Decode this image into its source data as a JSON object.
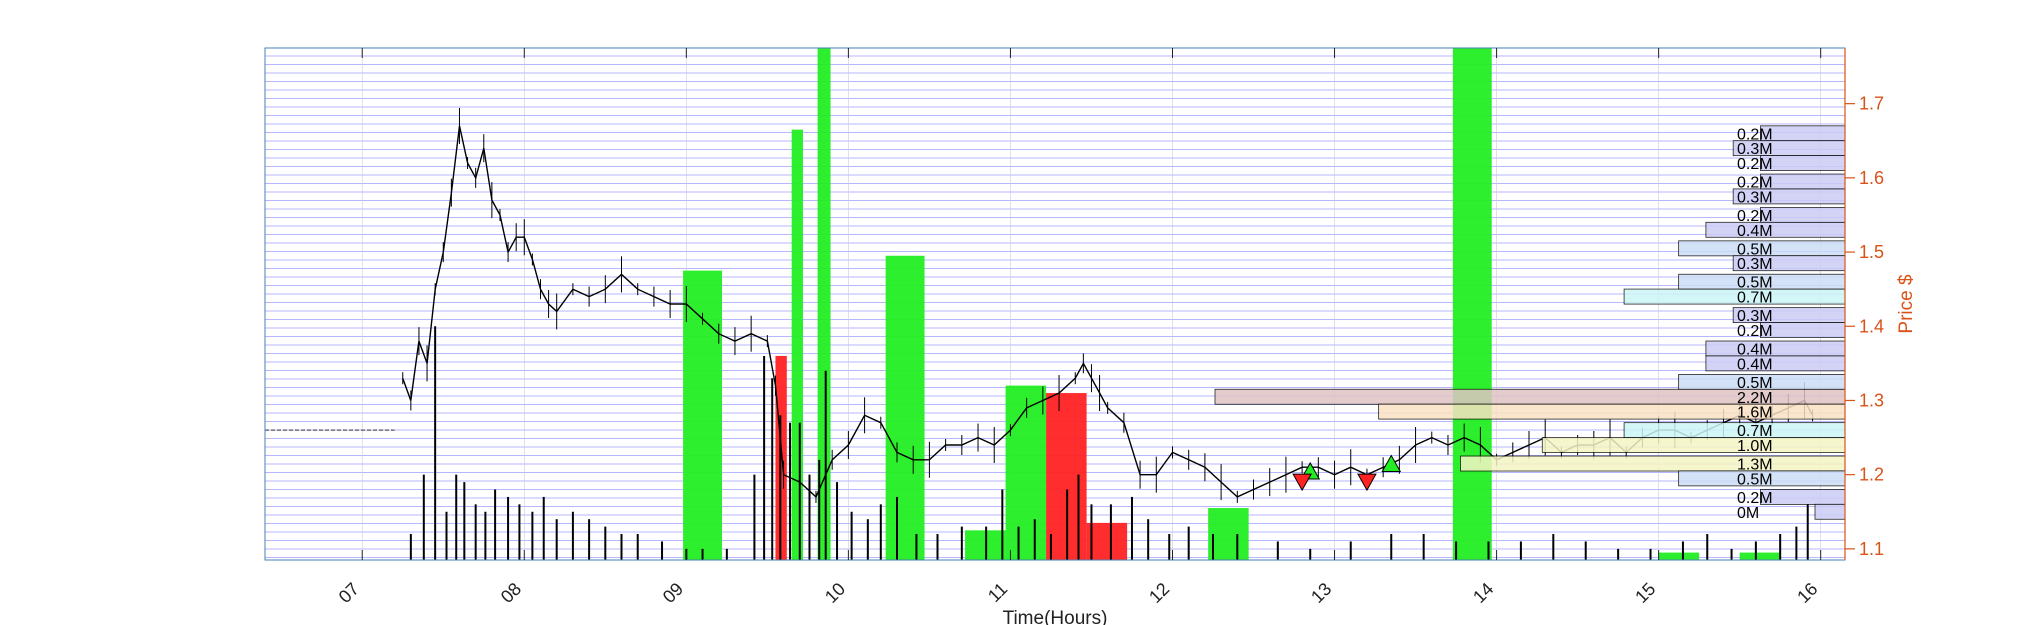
{
  "chart_data": {
    "type": "bar",
    "title": "",
    "xlabel": "Time(Hours)",
    "ylabel": "Price $",
    "xlim": [
      6.4,
      16.15
    ],
    "ylim": [
      1.085,
      1.775
    ],
    "x_ticks": [
      "07",
      "08",
      "09",
      "10",
      "11",
      "12",
      "13",
      "14",
      "15",
      "16"
    ],
    "x_tick_values": [
      7,
      8,
      9,
      10,
      11,
      12,
      13,
      14,
      15,
      16
    ],
    "y_ticks": [
      "1.1",
      "1.2",
      "1.3",
      "1.4",
      "1.5",
      "1.6",
      "1.7"
    ],
    "y_tick_values": [
      1.1,
      1.2,
      1.3,
      1.4,
      1.5,
      1.6,
      1.7
    ],
    "grid": "horizontal price levels",
    "colors": {
      "up": "#22ee22",
      "down": "#ff2222",
      "price": "#000000",
      "axis_right": "#d95319",
      "grid": "#4040ff"
    },
    "premarket_price": {
      "x_start": 6.4,
      "x_end": 7.2,
      "y": 1.26
    },
    "price_series": {
      "name": "Price",
      "x": [
        7.25,
        7.3,
        7.35,
        7.4,
        7.45,
        7.5,
        7.55,
        7.6,
        7.65,
        7.7,
        7.75,
        7.8,
        7.85,
        7.9,
        7.95,
        8.0,
        8.05,
        8.1,
        8.15,
        8.2,
        8.3,
        8.4,
        8.5,
        8.6,
        8.7,
        8.8,
        8.9,
        9.0,
        9.1,
        9.2,
        9.3,
        9.4,
        9.5,
        9.55,
        9.6,
        9.7,
        9.8,
        9.9,
        10.0,
        10.1,
        10.2,
        10.3,
        10.4,
        10.5,
        10.6,
        10.7,
        10.8,
        10.9,
        11.0,
        11.1,
        11.2,
        11.3,
        11.4,
        11.45,
        11.5,
        11.55,
        11.6,
        11.7,
        11.8,
        11.9,
        12.0,
        12.1,
        12.2,
        12.3,
        12.4,
        12.5,
        12.6,
        12.7,
        12.8,
        12.9,
        13.0,
        13.1,
        13.2,
        13.3,
        13.4,
        13.5,
        13.6,
        13.7,
        13.8,
        13.9,
        14.0,
        14.1,
        14.2,
        14.3,
        14.4,
        14.5,
        14.6,
        14.7,
        14.8,
        14.9,
        15.0,
        15.1,
        15.2,
        15.3,
        15.4,
        15.5,
        15.6,
        15.7,
        15.8,
        15.9,
        15.95
      ],
      "values": [
        1.33,
        1.3,
        1.38,
        1.35,
        1.45,
        1.5,
        1.58,
        1.67,
        1.62,
        1.6,
        1.64,
        1.57,
        1.55,
        1.5,
        1.52,
        1.52,
        1.49,
        1.45,
        1.43,
        1.42,
        1.45,
        1.44,
        1.45,
        1.47,
        1.45,
        1.44,
        1.43,
        1.43,
        1.41,
        1.39,
        1.38,
        1.39,
        1.38,
        1.32,
        1.2,
        1.19,
        1.17,
        1.22,
        1.24,
        1.28,
        1.27,
        1.23,
        1.22,
        1.22,
        1.24,
        1.24,
        1.25,
        1.24,
        1.26,
        1.29,
        1.3,
        1.31,
        1.33,
        1.35,
        1.33,
        1.31,
        1.29,
        1.27,
        1.2,
        1.2,
        1.23,
        1.22,
        1.21,
        1.19,
        1.17,
        1.18,
        1.19,
        1.2,
        1.21,
        1.21,
        1.2,
        1.21,
        1.2,
        1.21,
        1.22,
        1.24,
        1.25,
        1.24,
        1.25,
        1.24,
        1.22,
        1.23,
        1.24,
        1.25,
        1.23,
        1.24,
        1.24,
        1.25,
        1.23,
        1.25,
        1.26,
        1.26,
        1.25,
        1.26,
        1.27,
        1.28,
        1.27,
        1.28,
        1.29,
        1.3,
        1.28
      ]
    },
    "signal_bars": [
      {
        "color": "up",
        "x_start": 8.98,
        "x_end": 9.22,
        "top": 1.475
      },
      {
        "color": "up",
        "x_start": 9.65,
        "x_end": 9.72,
        "top": 1.665
      },
      {
        "color": "up",
        "x_start": 9.81,
        "x_end": 9.89,
        "top": 1.775
      },
      {
        "color": "up",
        "x_start": 10.23,
        "x_end": 10.47,
        "top": 1.495
      },
      {
        "color": "up",
        "x_start": 10.97,
        "x_end": 11.22,
        "top": 1.32
      },
      {
        "color": "down",
        "x_start": 11.22,
        "x_end": 11.47,
        "top": 1.31
      },
      {
        "color": "down",
        "x_start": 11.47,
        "x_end": 11.72,
        "top": 1.135
      },
      {
        "color": "up",
        "x_start": 12.22,
        "x_end": 12.47,
        "top": 1.155
      },
      {
        "color": "up",
        "x_start": 13.73,
        "x_end": 13.97,
        "top": 1.775
      },
      {
        "color": "up",
        "x_start": 10.72,
        "x_end": 10.97,
        "top": 1.125
      },
      {
        "color": "down",
        "x_start": 9.55,
        "x_end": 9.62,
        "top": 1.36
      },
      {
        "color": "up",
        "x_start": 15.0,
        "x_end": 15.25,
        "top": 1.095
      },
      {
        "color": "up",
        "x_start": 15.5,
        "x_end": 15.75,
        "top": 1.095
      }
    ],
    "volume_series": {
      "name": "Volume",
      "x": [
        7.3,
        7.38,
        7.45,
        7.52,
        7.58,
        7.63,
        7.7,
        7.76,
        7.82,
        7.9,
        7.97,
        8.05,
        8.12,
        8.2,
        8.3,
        8.4,
        8.5,
        8.6,
        8.7,
        8.85,
        9.0,
        9.1,
        9.25,
        9.42,
        9.48,
        9.53,
        9.58,
        9.64,
        9.7,
        9.76,
        9.82,
        9.86,
        9.93,
        10.02,
        10.12,
        10.2,
        10.3,
        10.42,
        10.55,
        10.7,
        10.85,
        10.95,
        11.05,
        11.15,
        11.25,
        11.35,
        11.42,
        11.5,
        11.62,
        11.75,
        11.85,
        11.98,
        12.1,
        12.25,
        12.4,
        12.65,
        12.85,
        13.1,
        13.35,
        13.55,
        13.75,
        13.95,
        14.15,
        14.35,
        14.55,
        14.75,
        14.95,
        15.15,
        15.3,
        15.45,
        15.6,
        15.75,
        15.85,
        15.92
      ],
      "values": [
        1.12,
        1.2,
        1.4,
        1.15,
        1.2,
        1.19,
        1.16,
        1.15,
        1.18,
        1.17,
        1.16,
        1.15,
        1.17,
        1.14,
        1.15,
        1.14,
        1.13,
        1.12,
        1.12,
        1.11,
        1.1,
        1.1,
        1.1,
        1.2,
        1.36,
        1.33,
        1.28,
        1.27,
        1.27,
        1.2,
        1.22,
        1.34,
        1.19,
        1.15,
        1.14,
        1.16,
        1.17,
        1.12,
        1.12,
        1.13,
        1.13,
        1.18,
        1.13,
        1.14,
        1.12,
        1.18,
        1.2,
        1.16,
        1.16,
        1.17,
        1.14,
        1.12,
        1.13,
        1.12,
        1.12,
        1.11,
        1.1,
        1.11,
        1.12,
        1.12,
        1.11,
        1.11,
        1.11,
        1.12,
        1.11,
        1.1,
        1.1,
        1.11,
        1.12,
        1.1,
        1.11,
        1.12,
        1.13,
        1.16
      ]
    },
    "trade_markers": [
      {
        "type": "buy",
        "x": 12.85,
        "price": 1.205
      },
      {
        "type": "sell",
        "x": 12.8,
        "price": 1.19
      },
      {
        "type": "buy",
        "x": 13.35,
        "price": 1.215
      },
      {
        "type": "sell",
        "x": 13.2,
        "price": 1.19
      }
    ],
    "volume_profile": [
      {
        "price": 1.66,
        "label": "0.2M",
        "volume": 0.2,
        "color": "#ccccf5"
      },
      {
        "price": 1.64,
        "label": "0.3M",
        "volume": 0.3,
        "color": "#ccccf5"
      },
      {
        "price": 1.62,
        "label": "0.2M",
        "volume": 0.2,
        "color": "#ccccf5"
      },
      {
        "price": 1.595,
        "label": "0.2M",
        "volume": 0.2,
        "color": "#ccccf5"
      },
      {
        "price": 1.575,
        "label": "0.3M",
        "volume": 0.3,
        "color": "#ccccf5"
      },
      {
        "price": 1.55,
        "label": "0.2M",
        "volume": 0.2,
        "color": "#ccccf5"
      },
      {
        "price": 1.53,
        "label": "0.4M",
        "volume": 0.4,
        "color": "#ccccf5"
      },
      {
        "price": 1.505,
        "label": "0.5M",
        "volume": 0.5,
        "color": "#ccddf5"
      },
      {
        "price": 1.485,
        "label": "0.3M",
        "volume": 0.3,
        "color": "#ccccf5"
      },
      {
        "price": 1.46,
        "label": "0.5M",
        "volume": 0.5,
        "color": "#ccddf5"
      },
      {
        "price": 1.44,
        "label": "0.7M",
        "volume": 0.7,
        "color": "#ccf5f5"
      },
      {
        "price": 1.415,
        "label": "0.3M",
        "volume": 0.3,
        "color": "#ccccf5"
      },
      {
        "price": 1.395,
        "label": "0.2M",
        "volume": 0.2,
        "color": "#ccccf5"
      },
      {
        "price": 1.37,
        "label": "0.4M",
        "volume": 0.4,
        "color": "#ccccf5"
      },
      {
        "price": 1.35,
        "label": "0.4M",
        "volume": 0.4,
        "color": "#ccccf5"
      },
      {
        "price": 1.325,
        "label": "0.5M",
        "volume": 0.5,
        "color": "#ccddf5"
      },
      {
        "price": 1.305,
        "label": "2.2M",
        "volume": 2.2,
        "color": "#e0c4c4"
      },
      {
        "price": 1.285,
        "label": "1.6M",
        "volume": 1.6,
        "color": "#fae2c4"
      },
      {
        "price": 1.26,
        "label": "0.7M",
        "volume": 0.7,
        "color": "#ccf5f5"
      },
      {
        "price": 1.24,
        "label": "1.0M",
        "volume": 1.0,
        "color": "#f5f5c4"
      },
      {
        "price": 1.215,
        "label": "1.3M",
        "volume": 1.3,
        "color": "#f5f5c4"
      },
      {
        "price": 1.195,
        "label": "0.5M",
        "volume": 0.5,
        "color": "#ccddf5"
      },
      {
        "price": 1.17,
        "label": "0.2M",
        "volume": 0.2,
        "color": "#ccccf5"
      },
      {
        "price": 1.15,
        "label": "0M",
        "volume": 0.0,
        "color": "#ccccf5"
      }
    ]
  }
}
